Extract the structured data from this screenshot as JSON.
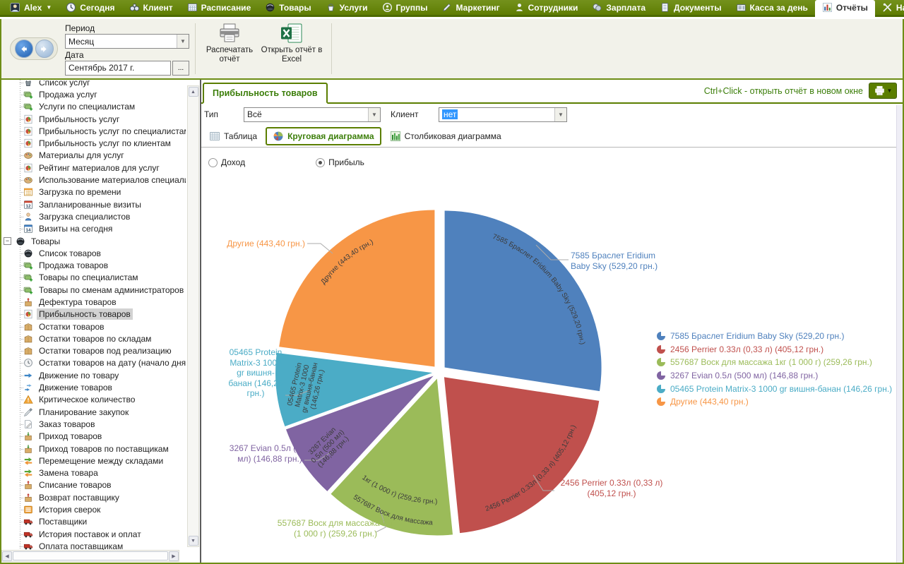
{
  "window": {
    "controls": [
      {
        "name": "minimize",
        "glyph": "−"
      },
      {
        "name": "maximize",
        "glyph": "□"
      },
      {
        "name": "close",
        "glyph": "×"
      }
    ]
  },
  "menubar": {
    "items": [
      {
        "id": "alex",
        "label": "Alex",
        "icon": "avatar",
        "caret": true
      },
      {
        "id": "today",
        "label": "Сегодня",
        "icon": "clock"
      },
      {
        "id": "client",
        "label": "Клиент",
        "icon": "client",
        "bold": true
      },
      {
        "id": "schedule",
        "label": "Расписание",
        "icon": "schedule"
      },
      {
        "id": "goods",
        "label": "Товары",
        "icon": "goods"
      },
      {
        "id": "services",
        "label": "Услуги",
        "icon": "services"
      },
      {
        "id": "groups",
        "label": "Группы",
        "icon": "groups"
      },
      {
        "id": "marketing",
        "label": "Маркетинг",
        "icon": "marketing"
      },
      {
        "id": "staff",
        "label": "Сотрудники",
        "icon": "staff"
      },
      {
        "id": "salary",
        "label": "Зарплата",
        "icon": "salary"
      },
      {
        "id": "documents",
        "label": "Документы",
        "icon": "documents"
      },
      {
        "id": "cashbox",
        "label": "Касса за день",
        "icon": "cashbox"
      },
      {
        "id": "reports",
        "label": "Отчёты",
        "icon": "reports",
        "active": true
      },
      {
        "id": "settings",
        "label": "Настройки",
        "icon": "settings"
      }
    ]
  },
  "toolbar": {
    "period_label": "Период",
    "period_value": "Месяц",
    "date_label": "Дата",
    "date_value": "Сентябрь 2017 г.",
    "date_browse": "...",
    "print_label": "Распечатать отчёт",
    "excel_label": "Открыть отчёт в Excel"
  },
  "sidebar": {
    "items": [
      {
        "label": "Список услуг",
        "icon": "bucket",
        "lvl": 1,
        "clip": true
      },
      {
        "label": "Продажа услуг",
        "icon": "money-plus",
        "lvl": 1
      },
      {
        "label": "Услуги по специалистам",
        "icon": "money-plus",
        "lvl": 1
      },
      {
        "label": "Прибыльность услуг",
        "icon": "pie-doc",
        "lvl": 1
      },
      {
        "label": "Прибыльность услуг по специалистам",
        "icon": "pie-doc",
        "lvl": 1
      },
      {
        "label": "Прибыльность услуг по клиентам",
        "icon": "pie-doc",
        "lvl": 1
      },
      {
        "label": "Материалы для услуг",
        "icon": "palette",
        "lvl": 1
      },
      {
        "label": "Рейтинг материалов для услуг",
        "icon": "pie-doc",
        "lvl": 1
      },
      {
        "label": "Использование материалов специалистами",
        "icon": "palette",
        "lvl": 1
      },
      {
        "label": "Загрузка по времени",
        "icon": "calendar-grid",
        "lvl": 1
      },
      {
        "label": "Запланированные визиты",
        "icon": "calendar-12",
        "lvl": 1
      },
      {
        "label": "Загрузка специалистов",
        "icon": "person",
        "lvl": 1
      },
      {
        "label": "Визиты на сегодня",
        "icon": "calendar-14",
        "lvl": 1
      },
      {
        "label": "Товары",
        "icon": "goods-sphere",
        "lvl": 0,
        "expanded": true
      },
      {
        "label": "Список товаров",
        "icon": "goods-sphere",
        "lvl": 1
      },
      {
        "label": "Продажа товаров",
        "icon": "money-plus",
        "lvl": 1
      },
      {
        "label": "Товары по специалистам",
        "icon": "money-plus",
        "lvl": 1
      },
      {
        "label": "Товары по сменам администраторов",
        "icon": "money-plus",
        "lvl": 1
      },
      {
        "label": "Дефектура товаров",
        "icon": "box-up-red",
        "lvl": 1
      },
      {
        "label": "Прибыльность товаров",
        "icon": "pie-doc",
        "lvl": 1,
        "selected": true
      },
      {
        "label": "Остатки товаров",
        "icon": "box",
        "lvl": 1
      },
      {
        "label": "Остатки товаров по складам",
        "icon": "box",
        "lvl": 1
      },
      {
        "label": "Остатки товаров под реализацию",
        "icon": "box",
        "lvl": 1
      },
      {
        "label": "Остатки товаров на дату (начало дня)",
        "icon": "clock-gray",
        "lvl": 1
      },
      {
        "label": "Движение по товару",
        "icon": "arrow-right",
        "lvl": 1
      },
      {
        "label": "Движение товаров",
        "icon": "arrows-move",
        "lvl": 1
      },
      {
        "label": "Критическое количество",
        "icon": "warning",
        "lvl": 1
      },
      {
        "label": "Планирование закупок",
        "icon": "marker",
        "lvl": 1
      },
      {
        "label": "Заказ товаров",
        "icon": "order-doc",
        "lvl": 1
      },
      {
        "label": "Приход товаров",
        "icon": "box-down-green",
        "lvl": 1
      },
      {
        "label": "Приход товаров по поставщикам",
        "icon": "box-down-green",
        "lvl": 1
      },
      {
        "label": "Перемещение между складами",
        "icon": "swap",
        "lvl": 1
      },
      {
        "label": "Замена товара",
        "icon": "swap",
        "lvl": 1
      },
      {
        "label": "Списание товаров",
        "icon": "box-up-red",
        "lvl": 1
      },
      {
        "label": "Возврат поставщику",
        "icon": "box-up-red",
        "lvl": 1
      },
      {
        "label": "История сверок",
        "icon": "history",
        "lvl": 1
      },
      {
        "label": "Поставщики",
        "icon": "truck",
        "lvl": 1
      },
      {
        "label": "История поставок и оплат",
        "icon": "truck",
        "lvl": 1
      },
      {
        "label": "Оплата поставщикам",
        "icon": "truck",
        "lvl": 1
      },
      {
        "label": "",
        "icon": "truck",
        "lvl": 1,
        "clip": true
      }
    ]
  },
  "report": {
    "tab_title": "Прибыльность товаров",
    "hint": "Ctrl+Click - открыть отчёт в новом окне",
    "filters": {
      "type_label": "Тип",
      "type_value": "Всё",
      "client_label": "Клиент",
      "client_value": "нет"
    },
    "view_tabs": [
      {
        "label": "Таблица",
        "icon": "table",
        "active": false
      },
      {
        "label": "Круговая диаграмма",
        "icon": "pie",
        "active": true
      },
      {
        "label": "Столбиковая диаграмма",
        "icon": "bars",
        "active": false
      }
    ],
    "metric_options": [
      {
        "label": "Доход",
        "selected": false
      },
      {
        "label": "Прибыль",
        "selected": true
      }
    ]
  },
  "chart_data": {
    "type": "pie",
    "metric": "Прибыль",
    "currency": "грн.",
    "legend_position": "right",
    "slices": [
      {
        "label": "7585 Браслет Eridium Baby Sky (529,20 грн.)",
        "value": 529.2,
        "color": "#4F81BD"
      },
      {
        "label": "2456 Perrier 0.33л (0,33 л) (405,12 грн.)",
        "value": 405.12,
        "color": "#C0504D"
      },
      {
        "label": "557687 Воск для массажа 1кг (1 000 г) (259,26 грн.)",
        "value": 259.26,
        "color": "#9BBB59"
      },
      {
        "label": "3267 Evian 0.5л (500 мл) (146,88 грн.)",
        "value": 146.88,
        "color": "#8064A2"
      },
      {
        "label": "05465 Protein Matrix-3 1000 gr вишня-банан (146,26 грн.)",
        "value": 146.26,
        "color": "#4BACC6"
      },
      {
        "label": "Другие (443,40 грн.)",
        "value": 443.4,
        "color": "#F79646"
      }
    ]
  }
}
